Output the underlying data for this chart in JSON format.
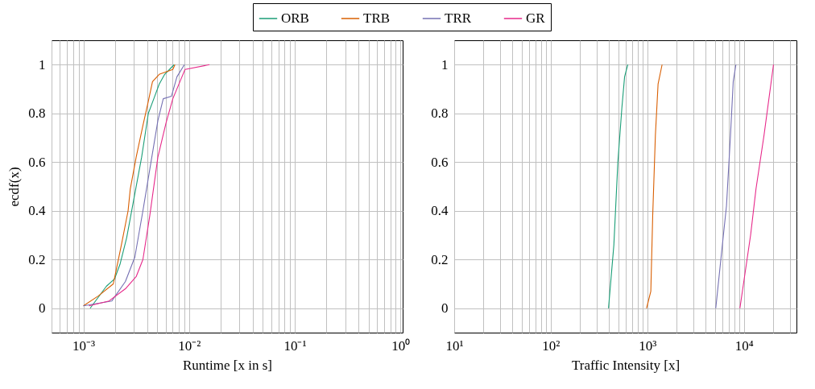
{
  "chart_data": [
    {
      "type": "line",
      "xlabel": "Runtime [x in s]",
      "ylabel": "ecdf(x)",
      "log": "x",
      "grid": true,
      "legend": "top",
      "line_style": "solid",
      "marker": "none",
      "xlim": [
        0.0005,
        1.05
      ],
      "ylim": [
        -0.1,
        1.1
      ],
      "xticks": [
        {
          "value": 0.0005,
          "label": null
        },
        {
          "value": 0.0006,
          "label": null
        },
        {
          "value": 0.0007,
          "label": null
        },
        {
          "value": 0.0008,
          "label": null
        },
        {
          "value": 0.0009,
          "label": null
        },
        {
          "value": 0.001,
          "label": "10⁻³"
        },
        {
          "value": 0.002,
          "label": null
        },
        {
          "value": 0.003,
          "label": null
        },
        {
          "value": 0.004,
          "label": null
        },
        {
          "value": 0.005,
          "label": null
        },
        {
          "value": 0.006,
          "label": null
        },
        {
          "value": 0.007,
          "label": null
        },
        {
          "value": 0.008,
          "label": null
        },
        {
          "value": 0.009,
          "label": null
        },
        {
          "value": 0.01,
          "label": "10⁻²"
        },
        {
          "value": 0.02,
          "label": null
        },
        {
          "value": 0.03,
          "label": null
        },
        {
          "value": 0.04,
          "label": null
        },
        {
          "value": 0.05,
          "label": null
        },
        {
          "value": 0.06,
          "label": null
        },
        {
          "value": 0.07,
          "label": null
        },
        {
          "value": 0.08,
          "label": null
        },
        {
          "value": 0.09,
          "label": null
        },
        {
          "value": 0.1,
          "label": "10⁻¹"
        },
        {
          "value": 0.2,
          "label": null
        },
        {
          "value": 0.3,
          "label": null
        },
        {
          "value": 0.4,
          "label": null
        },
        {
          "value": 0.5,
          "label": null
        },
        {
          "value": 0.6,
          "label": null
        },
        {
          "value": 0.7,
          "label": null
        },
        {
          "value": 0.8,
          "label": null
        },
        {
          "value": 0.9,
          "label": null
        },
        {
          "value": 1,
          "label": "10⁰"
        }
      ],
      "yticks": [
        0,
        0.2,
        0.4,
        0.6,
        0.8,
        1
      ],
      "series": [
        {
          "name": "ORB",
          "color": "#1b9e77",
          "x": [
            0.00116,
            0.00165,
            0.00197,
            0.00222,
            0.00257,
            0.00298,
            0.00356,
            0.00412,
            0.00464,
            0.00522,
            0.00588,
            0.00723
          ],
          "values": [
            0,
            0.09,
            0.12,
            0.18,
            0.29,
            0.44,
            0.62,
            0.8,
            0.86,
            0.92,
            0.96,
            1
          ]
        },
        {
          "name": "TRB",
          "color": "#d95f02",
          "x": [
            0.001,
            0.00138,
            0.00192,
            0.00203,
            0.00229,
            0.00265,
            0.00278,
            0.00316,
            0.00366,
            0.00412,
            0.00451,
            0.00522,
            0.00702,
            0.00736
          ],
          "values": [
            0.01,
            0.05,
            0.1,
            0.15,
            0.26,
            0.4,
            0.49,
            0.62,
            0.75,
            0.85,
            0.93,
            0.96,
            0.98,
            1
          ]
        },
        {
          "name": "TRR",
          "color": "#7570b3",
          "x": [
            0.001,
            0.00186,
            0.0025,
            0.00307,
            0.00366,
            0.00425,
            0.00507,
            0.0057,
            0.00681,
            0.00768,
            0.00904
          ],
          "values": [
            0.01,
            0.03,
            0.11,
            0.21,
            0.4,
            0.57,
            0.77,
            0.86,
            0.87,
            0.95,
            1
          ]
        },
        {
          "name": "GR",
          "color": "#e7298a",
          "x": [
            0.00113,
            0.00175,
            0.0025,
            0.00316,
            0.00366,
            0.00425,
            0.00507,
            0.00605,
            0.00702,
            0.00838,
            0.00916,
            0.0156
          ],
          "values": [
            0.01,
            0.03,
            0.08,
            0.13,
            0.2,
            0.38,
            0.62,
            0.76,
            0.86,
            0.94,
            0.98,
            1
          ]
        }
      ]
    },
    {
      "type": "line",
      "xlabel": "Traffic Intensity [x]",
      "log": "x",
      "grid": true,
      "line_style": "solid",
      "marker": "none",
      "xlim": [
        10,
        35000
      ],
      "ylim": [
        -0.1,
        1.1
      ],
      "xticks": [
        {
          "value": 10,
          "label": "10¹"
        },
        {
          "value": 20,
          "label": null
        },
        {
          "value": 30,
          "label": null
        },
        {
          "value": 40,
          "label": null
        },
        {
          "value": 50,
          "label": null
        },
        {
          "value": 60,
          "label": null
        },
        {
          "value": 70,
          "label": null
        },
        {
          "value": 80,
          "label": null
        },
        {
          "value": 90,
          "label": null
        },
        {
          "value": 100,
          "label": "10²"
        },
        {
          "value": 200,
          "label": null
        },
        {
          "value": 300,
          "label": null
        },
        {
          "value": 400,
          "label": null
        },
        {
          "value": 500,
          "label": null
        },
        {
          "value": 600,
          "label": null
        },
        {
          "value": 700,
          "label": null
        },
        {
          "value": 800,
          "label": null
        },
        {
          "value": 900,
          "label": null
        },
        {
          "value": 1000,
          "label": "10³"
        },
        {
          "value": 2000,
          "label": null
        },
        {
          "value": 3000,
          "label": null
        },
        {
          "value": 4000,
          "label": null
        },
        {
          "value": 5000,
          "label": null
        },
        {
          "value": 6000,
          "label": null
        },
        {
          "value": 7000,
          "label": null
        },
        {
          "value": 8000,
          "label": null
        },
        {
          "value": 9000,
          "label": null
        },
        {
          "value": 10000,
          "label": "10⁴"
        },
        {
          "value": 20000,
          "label": null
        },
        {
          "value": 30000,
          "label": null
        }
      ],
      "yticks": [
        0,
        0.2,
        0.4,
        0.6,
        0.8,
        1
      ],
      "series": [
        {
          "color": "#1b9e77",
          "x": [
            396,
            450,
            495,
            544,
            581,
            627
          ],
          "values": [
            0,
            0.26,
            0.6,
            0.82,
            0.95,
            1
          ]
        },
        {
          "color": "#d95f02",
          "x": [
            981,
            1086,
            1136,
            1211,
            1291,
            1421
          ],
          "values": [
            0,
            0.07,
            0.38,
            0.71,
            0.92,
            1
          ]
        },
        {
          "color": "#7570b3",
          "x": [
            5110,
            5800,
            6594,
            7258,
            7745,
            8258
          ],
          "values": [
            0,
            0.21,
            0.42,
            0.71,
            0.93,
            1
          ]
        },
        {
          "color": "#e7298a",
          "x": [
            9085,
            11720,
            13335,
            16140,
            20230
          ],
          "values": [
            0,
            0.3,
            0.49,
            0.71,
            1
          ]
        }
      ]
    }
  ]
}
